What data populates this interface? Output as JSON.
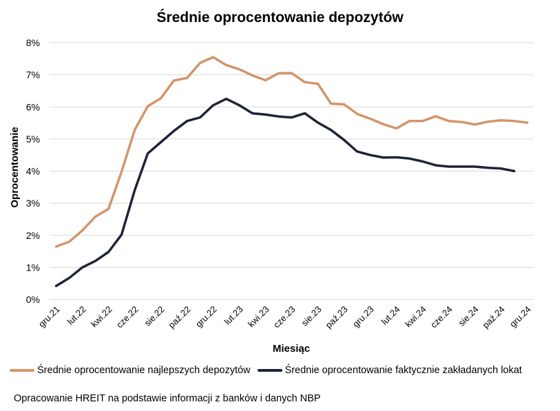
{
  "chart_data": {
    "type": "line",
    "title": "Średnie oprocentowanie depozytów",
    "xlabel": "Miesiąc",
    "ylabel": "Oprocentowanie",
    "x": [
      "gru.21",
      "sty.22",
      "lut.22",
      "mar.22",
      "kwi.22",
      "maj.22",
      "cze.22",
      "lip.22",
      "sie.22",
      "wrz.22",
      "paź.22",
      "lis.22",
      "gru.22",
      "sty.23",
      "lut.23",
      "mar.23",
      "kwi.23",
      "maj.23",
      "cze.23",
      "lip.23",
      "sie.23",
      "wrz.23",
      "paź.23",
      "lis.23",
      "gru.23",
      "sty.24",
      "lut.24",
      "mar.24",
      "kwi.24",
      "maj.24",
      "cze.24",
      "lip.24",
      "sie.24",
      "wrz.24",
      "paź.24",
      "lis.24",
      "gru.24"
    ],
    "x_tick_labels": [
      "gru.21",
      "lut.22",
      "kwi.22",
      "cze.22",
      "sie.22",
      "paź.22",
      "gru.22",
      "lut.23",
      "kwi.23",
      "cze.23",
      "sie.23",
      "paź.23",
      "gru.23",
      "lut.24",
      "kwi.24",
      "cze.24",
      "sie.24",
      "paź.24",
      "gru.24"
    ],
    "y_ticks": [
      0,
      1,
      2,
      3,
      4,
      5,
      6,
      7,
      8
    ],
    "y_tick_labels": [
      "0%",
      "1%",
      "2%",
      "3%",
      "4%",
      "5%",
      "6%",
      "7%",
      "8%"
    ],
    "ylim": [
      0,
      8
    ],
    "grid": "horizontal",
    "legend_position": "bottom-left",
    "series": [
      {
        "name": "Średnie oprocentowanie najlepszych depozytów",
        "color": "#D4946A",
        "values": [
          1.65,
          1.8,
          2.15,
          2.58,
          2.82,
          3.98,
          5.28,
          6.02,
          6.27,
          6.82,
          6.9,
          7.37,
          7.55,
          7.3,
          7.17,
          6.98,
          6.83,
          7.05,
          7.05,
          6.77,
          6.72,
          6.1,
          6.08,
          5.78,
          5.63,
          5.46,
          5.33,
          5.56,
          5.56,
          5.71,
          5.56,
          5.53,
          5.45,
          5.54,
          5.58,
          5.56,
          5.51
        ]
      },
      {
        "name": "Średnie oprocentowanie faktycznie zakładanych lokat",
        "color": "#1E2436",
        "values": [
          0.42,
          0.67,
          1.0,
          1.2,
          1.48,
          2.02,
          3.4,
          4.55,
          4.9,
          5.25,
          5.56,
          5.67,
          6.05,
          6.25,
          6.05,
          5.8,
          5.76,
          5.7,
          5.67,
          5.8,
          5.51,
          5.28,
          4.97,
          4.61,
          4.5,
          4.42,
          4.43,
          4.39,
          4.3,
          4.18,
          4.14,
          4.14,
          4.14,
          4.1,
          4.08,
          4.0,
          null
        ]
      }
    ]
  },
  "footer": {
    "source_note": "Opracowanie HREIT na podstawie informacji z banków i danych NBP"
  }
}
